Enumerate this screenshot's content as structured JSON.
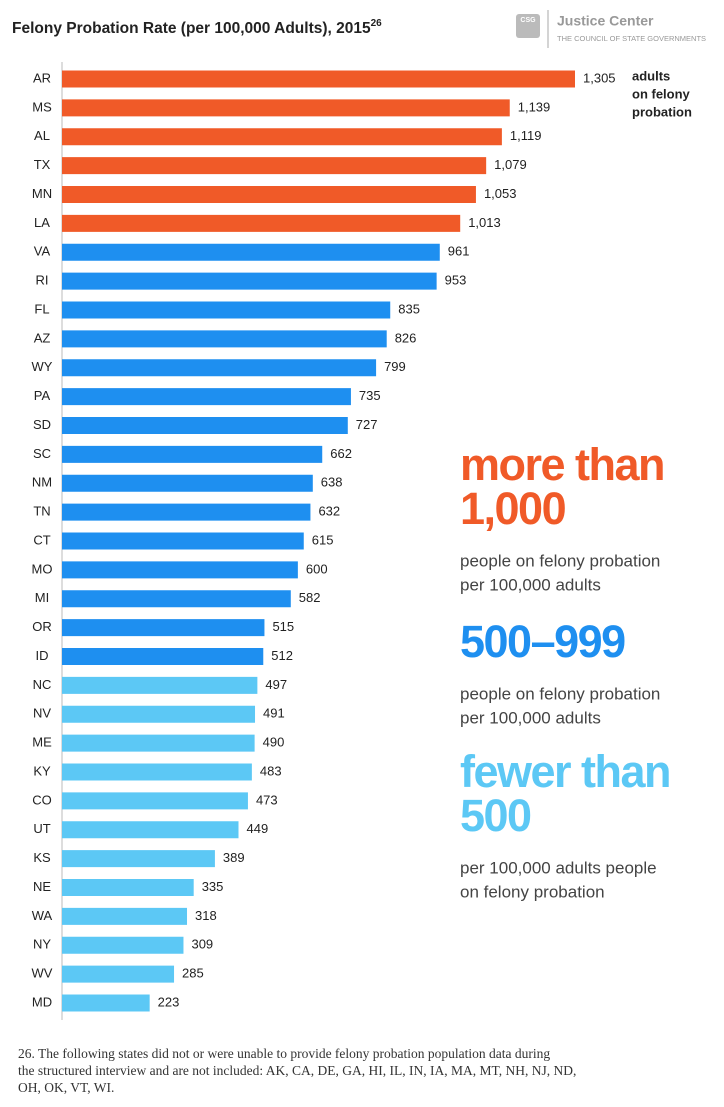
{
  "chart_data": {
    "type": "bar",
    "orientation": "horizontal",
    "title": "Felony Probation Rate (per 100,000 Adults), 2015",
    "title_superscript": "26",
    "logo": {
      "mark": "CSG",
      "name": "Justice Center",
      "subtitle": "THE COUNCIL OF STATE GOVERNMENTS"
    },
    "annotation": [
      "adults",
      "on felony",
      "probation"
    ],
    "categories": [
      "AR",
      "MS",
      "AL",
      "TX",
      "MN",
      "LA",
      "VA",
      "RI",
      "FL",
      "AZ",
      "WY",
      "PA",
      "SD",
      "SC",
      "NM",
      "TN",
      "CT",
      "MO",
      "MI",
      "OR",
      "ID",
      "NC",
      "NV",
      "ME",
      "KY",
      "CO",
      "UT",
      "KS",
      "NE",
      "WA",
      "NY",
      "WV",
      "MD"
    ],
    "values": [
      1305,
      1139,
      1119,
      1079,
      1053,
      1013,
      961,
      953,
      835,
      826,
      799,
      735,
      727,
      662,
      638,
      632,
      615,
      600,
      582,
      515,
      512,
      497,
      491,
      490,
      483,
      473,
      449,
      389,
      335,
      318,
      309,
      285,
      223
    ],
    "value_labels": [
      "1,305",
      "1,139",
      "1,119",
      "1,079",
      "1,053",
      "1,013",
      "961",
      "953",
      "835",
      "826",
      "799",
      "735",
      "727",
      "662",
      "638",
      "632",
      "615",
      "600",
      "582",
      "515",
      "512",
      "497",
      "491",
      "490",
      "483",
      "473",
      "449",
      "389",
      "335",
      "318",
      "309",
      "285",
      "223"
    ],
    "colors": [
      "#f05a28",
      "#f05a28",
      "#f05a28",
      "#f05a28",
      "#f05a28",
      "#f05a28",
      "#1e8ff0",
      "#1e8ff0",
      "#1e8ff0",
      "#1e8ff0",
      "#1e8ff0",
      "#1e8ff0",
      "#1e8ff0",
      "#1e8ff0",
      "#1e8ff0",
      "#1e8ff0",
      "#1e8ff0",
      "#1e8ff0",
      "#1e8ff0",
      "#1e8ff0",
      "#1e8ff0",
      "#5cc8f5",
      "#5cc8f5",
      "#5cc8f5",
      "#5cc8f5",
      "#5cc8f5",
      "#5cc8f5",
      "#5cc8f5",
      "#5cc8f5",
      "#5cc8f5",
      "#5cc8f5",
      "#5cc8f5",
      "#5cc8f5"
    ],
    "legend": [
      {
        "heading": [
          "more than",
          "1,000"
        ],
        "text": [
          "people on felony probation",
          "per 100,000 adults"
        ],
        "color": "#f05a28"
      },
      {
        "heading": [
          "500–999"
        ],
        "text": [
          "people on felony probation",
          "per 100,000 adults"
        ],
        "color": "#1e8ff0"
      },
      {
        "heading": [
          "fewer than",
          "500"
        ],
        "text": [
          "per 100,000 adults people",
          "on felony probation"
        ],
        "color": "#5cc8f5"
      }
    ],
    "footnote": [
      "26. The following states did not or were unable to provide felony probation population data during",
      "the structured interview and are not included: AK, CA, DE, GA, HI, IL, IN, IA, MA, MT, NH, NJ, ND,",
      "OH, OK, VT, WI."
    ]
  }
}
